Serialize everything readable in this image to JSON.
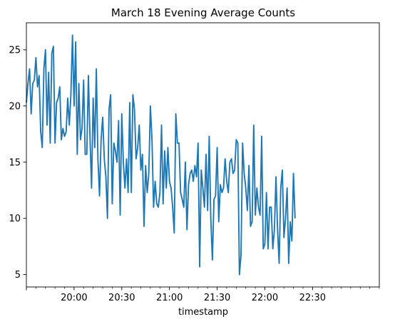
{
  "chart_data": {
    "type": "line",
    "title": "March 18 Evening Average Counts",
    "xlabel": "timestamp",
    "ylabel": "",
    "ylim": [
      3.9,
      27.4
    ],
    "xlim_minutes": [
      0,
      222
    ],
    "x_ticks": [
      {
        "minute": 0,
        "label": ""
      },
      {
        "minute": 30,
        "label": "20:00"
      },
      {
        "minute": 60,
        "label": "20:30"
      },
      {
        "minute": 90,
        "label": "21:00"
      },
      {
        "minute": 120,
        "label": "21:30"
      },
      {
        "minute": 150,
        "label": "22:00"
      },
      {
        "minute": 180,
        "label": "22:30"
      }
    ],
    "x_minor_step": 6,
    "y_ticks": [
      5,
      10,
      15,
      20,
      25
    ],
    "grid": false,
    "line_color": "#1f77b4",
    "series": [
      {
        "x_start": "19:30",
        "step_minutes": 1,
        "values": [
          20.3,
          22.0,
          23.3,
          19.3,
          22.0,
          22.3,
          24.3,
          21.7,
          22.7,
          17.7,
          16.3,
          23.3,
          25.0,
          18.3,
          23.0,
          16.7,
          24.7,
          25.3,
          16.7,
          20.3,
          20.7,
          21.7,
          17.0,
          18.0,
          17.3,
          17.7,
          20.7,
          18.3,
          21.0,
          26.3,
          20.0,
          25.7,
          15.7,
          22.0,
          17.0,
          18.0,
          22.3,
          15.7,
          15.7,
          22.7,
          17.3,
          12.7,
          20.7,
          16.3,
          23.3,
          15.3,
          12.0,
          17.0,
          19.0,
          15.3,
          13.7,
          10.0,
          19.7,
          21.0,
          11.3,
          16.7,
          16.0,
          15.0,
          18.7,
          10.3,
          19.3,
          15.0,
          12.7,
          15.3,
          12.3,
          20.3,
          12.3,
          21.0,
          19.7,
          15.3,
          16.3,
          18.3,
          14.3,
          15.7,
          9.3,
          14.7,
          12.3,
          14.0,
          20.0,
          17.0,
          11.0,
          13.3,
          11.3,
          11.0,
          12.3,
          18.3,
          11.3,
          16.0,
          12.7,
          16.3,
          13.3,
          12.7,
          11.0,
          8.7,
          19.3,
          16.7,
          16.7,
          12.3,
          11.7,
          11.0,
          15.0,
          9.0,
          13.0,
          14.0,
          14.3,
          13.3,
          14.7,
          13.7,
          16.7,
          5.7,
          14.3,
          12.7,
          11.0,
          15.7,
          10.7,
          17.3,
          10.0,
          6.3,
          11.7,
          12.0,
          16.3,
          9.7,
          13.0,
          12.3,
          12.7,
          15.3,
          13.3,
          12.3,
          15.0,
          15.3,
          14.0,
          14.3,
          17.0,
          16.7,
          5.0,
          6.7,
          16.7,
          14.0,
          12.7,
          10.7,
          14.7,
          9.3,
          9.7,
          18.3,
          10.3,
          12.7,
          11.0,
          10.3,
          17.3,
          7.3,
          7.7,
          12.3,
          7.3,
          11.0,
          11.0,
          7.3,
          9.0,
          13.7,
          9.0,
          6.0,
          12.7,
          14.3,
          8.3,
          10.0,
          12.7,
          6.0,
          9.7,
          8.0,
          14.0,
          10.0
        ]
      }
    ]
  }
}
